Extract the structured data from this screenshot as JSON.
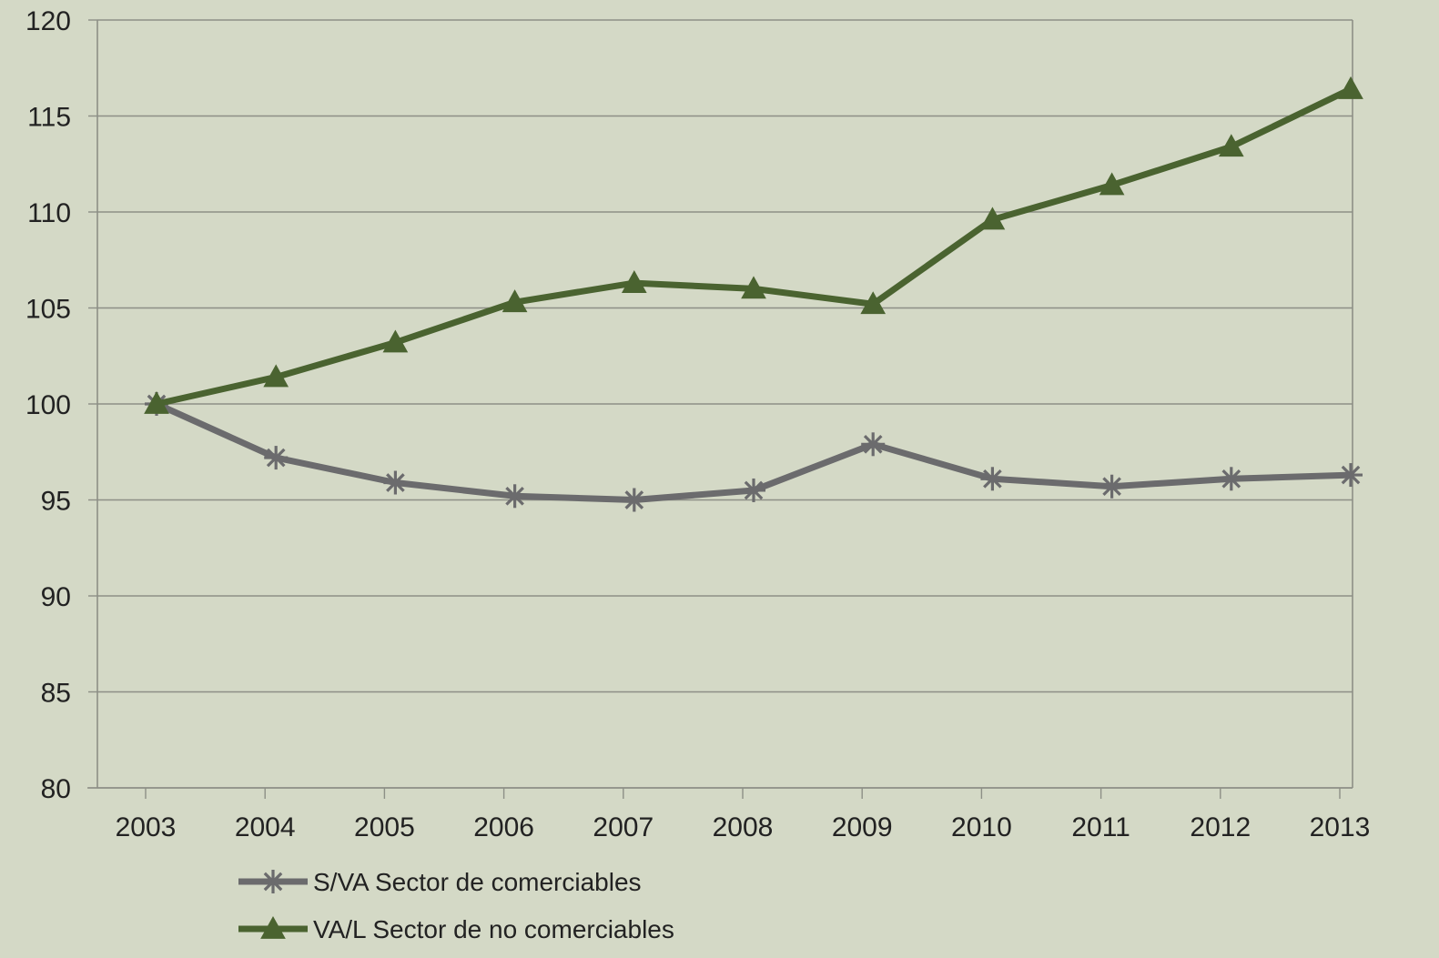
{
  "chart_data": {
    "type": "line",
    "title": "",
    "xlabel": "",
    "ylabel": "",
    "x": [
      "2003",
      "2004",
      "2005",
      "2006",
      "2007",
      "2008",
      "2009",
      "2010",
      "2011",
      "2012",
      "2013"
    ],
    "ylim": [
      80,
      120
    ],
    "yticks": [
      "80",
      "85",
      "90",
      "95",
      "100",
      "105",
      "110",
      "115",
      "120"
    ],
    "grid": true,
    "legend_position": "bottom-left",
    "series": [
      {
        "name": "S/VA Sector de comerciables",
        "marker": "asterisk",
        "color": "#6b6b6d",
        "values": [
          100.0,
          97.2,
          95.9,
          95.2,
          95.0,
          95.5,
          97.9,
          96.1,
          95.7,
          96.1,
          96.3
        ]
      },
      {
        "name": "VA/L Sector de no comerciables",
        "marker": "triangle",
        "color": "#4a6330",
        "values": [
          100.0,
          101.4,
          103.2,
          105.3,
          106.3,
          106.0,
          105.2,
          109.6,
          111.4,
          113.4,
          116.4
        ]
      }
    ]
  }
}
